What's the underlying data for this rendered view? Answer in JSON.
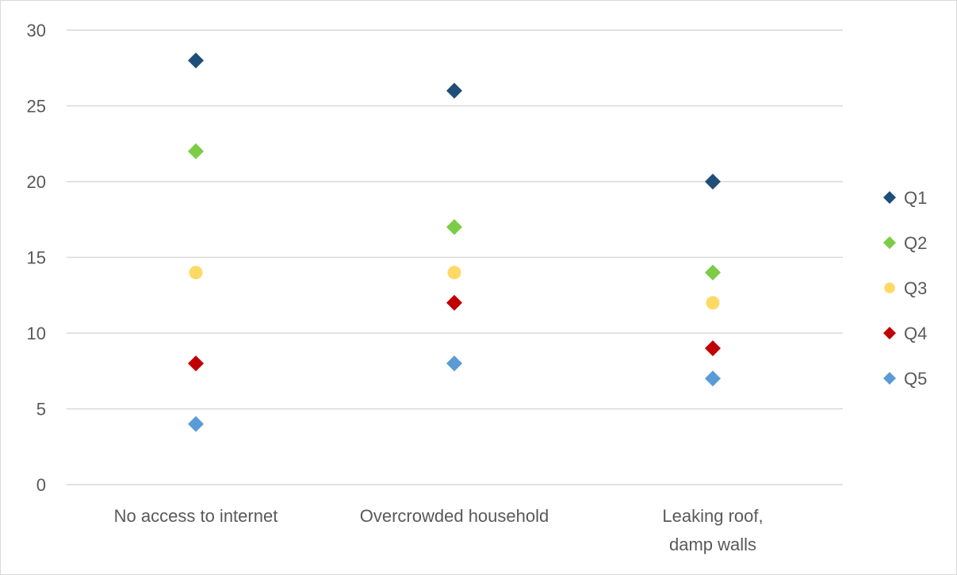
{
  "chart_data": {
    "type": "scatter",
    "categories": [
      [
        "No access to internet"
      ],
      [
        "Overcrowded household"
      ],
      [
        "Leaking roof,",
        "damp walls"
      ]
    ],
    "y_ticks": [
      "0",
      "5",
      "10",
      "15",
      "20",
      "25",
      "30"
    ],
    "ylim": [
      0,
      30
    ],
    "grid": true,
    "legend_position": "right",
    "series": [
      {
        "name": "Q1",
        "marker": "diamond",
        "color": "#1f4e79",
        "values": [
          28,
          26,
          20
        ]
      },
      {
        "name": "Q2",
        "marker": "diamond",
        "color": "#7ccc46",
        "values": [
          22,
          17,
          14
        ]
      },
      {
        "name": "Q3",
        "marker": "circle",
        "color": "#ffd966",
        "values": [
          14,
          14,
          12
        ]
      },
      {
        "name": "Q4",
        "marker": "diamond",
        "color": "#c00000",
        "values": [
          8,
          12,
          9
        ]
      },
      {
        "name": "Q5",
        "marker": "diamond",
        "color": "#5b9bd5",
        "values": [
          4,
          8,
          7
        ]
      }
    ]
  }
}
